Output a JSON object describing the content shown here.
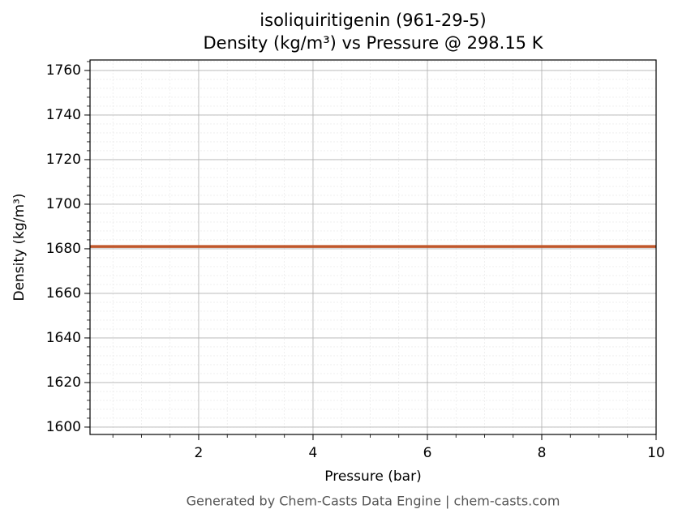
{
  "chart_data": {
    "type": "line",
    "title": [
      "isoliquiritigenin (961-29-5)",
      "Density (kg/m³) vs Pressure @ 298.15 K"
    ],
    "x_label": "Pressure (bar)",
    "y_label": "Density (kg/m³)",
    "x": [
      0.1,
      10
    ],
    "series": [
      {
        "name": "Density",
        "color": "#c0572b",
        "values": [
          1681,
          1681
        ]
      }
    ],
    "xlim": [
      0.1,
      10
    ],
    "xticks": [
      2,
      4,
      6,
      8,
      10
    ],
    "ylim": [
      1596.7,
      1764.7
    ],
    "yticks": [
      1600,
      1620,
      1640,
      1660,
      1680,
      1700,
      1720,
      1740,
      1760
    ],
    "grid": true,
    "minor_grid": true,
    "footer": "Generated by Chem-Casts Data Engine | chem-casts.com"
  }
}
